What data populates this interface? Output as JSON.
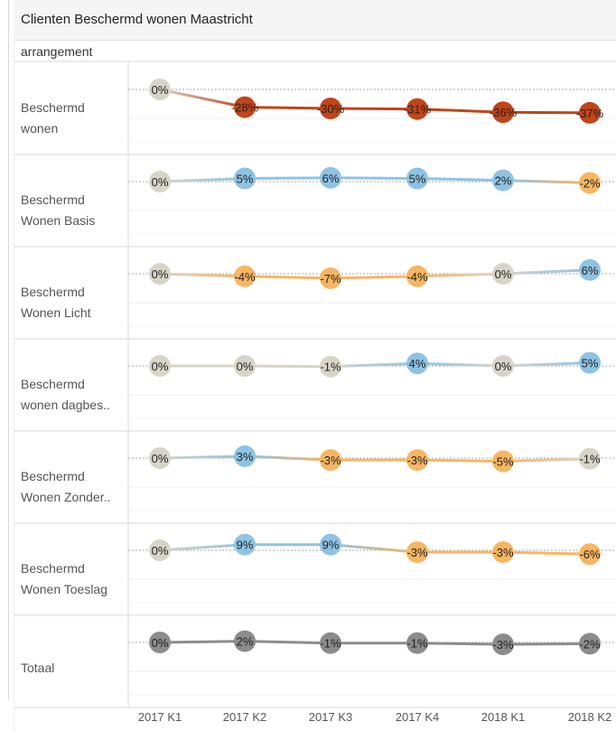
{
  "title": "Clienten Beschermd wonen Maastricht",
  "row_header": "arrangement",
  "colors": {
    "orange_dark": "#c0451a",
    "orange_light": "#f8b562",
    "blue": "#8ec3e4",
    "neutral": "#d8d4c8",
    "gray": "#8c8c8c"
  },
  "chart_data": {
    "type": "line",
    "x": [
      "2017 K1",
      "2017 K2",
      "2017 K3",
      "2017 K4",
      "2018 K1",
      "2018 K2"
    ],
    "rows": [
      {
        "label_lines": [
          "Beschermd",
          "wonen"
        ],
        "values": [
          0,
          -28,
          -30,
          -31,
          -36,
          -37
        ],
        "labels": [
          "0%",
          "-28%",
          "-30%",
          "-31%",
          "-36%",
          "-37%"
        ]
      },
      {
        "label_lines": [
          "Beschermd",
          "Wonen Basis"
        ],
        "values": [
          0,
          5,
          6,
          5,
          2,
          -2
        ],
        "labels": [
          "0%",
          "5%",
          "6%",
          "5%",
          "2%",
          "-2%"
        ]
      },
      {
        "label_lines": [
          "Beschermd",
          "Wonen Licht"
        ],
        "values": [
          0,
          -4,
          -7,
          -4,
          0,
          6
        ],
        "labels": [
          "0%",
          "-4%",
          "-7%",
          "-4%",
          "0%",
          "6%"
        ]
      },
      {
        "label_lines": [
          "Beschermd",
          "wonen dagbes.."
        ],
        "values": [
          0,
          0,
          -1,
          4,
          0,
          5
        ],
        "labels": [
          "0%",
          "0%",
          "-1%",
          "4%",
          "0%",
          "5%"
        ]
      },
      {
        "label_lines": [
          "Beschermd",
          "Wonen Zonder.."
        ],
        "values": [
          0,
          3,
          -3,
          -3,
          -5,
          -1
        ],
        "labels": [
          "0%",
          "3%",
          "-3%",
          "-3%",
          "-5%",
          "-1%"
        ]
      },
      {
        "label_lines": [
          "Beschermd",
          "Wonen Toeslag"
        ],
        "values": [
          0,
          9,
          9,
          -3,
          -3,
          -6
        ],
        "labels": [
          "0%",
          "9%",
          "9%",
          "-3%",
          "-3%",
          "-6%"
        ]
      },
      {
        "label_lines": [
          "Totaal"
        ],
        "values": [
          0,
          2,
          -1,
          -1,
          -3,
          -2
        ],
        "labels": [
          "0%",
          "2%",
          "-1%",
          "-1%",
          "-3%",
          "-2%"
        ]
      }
    ],
    "reference_line": 0,
    "gridlines": true
  }
}
